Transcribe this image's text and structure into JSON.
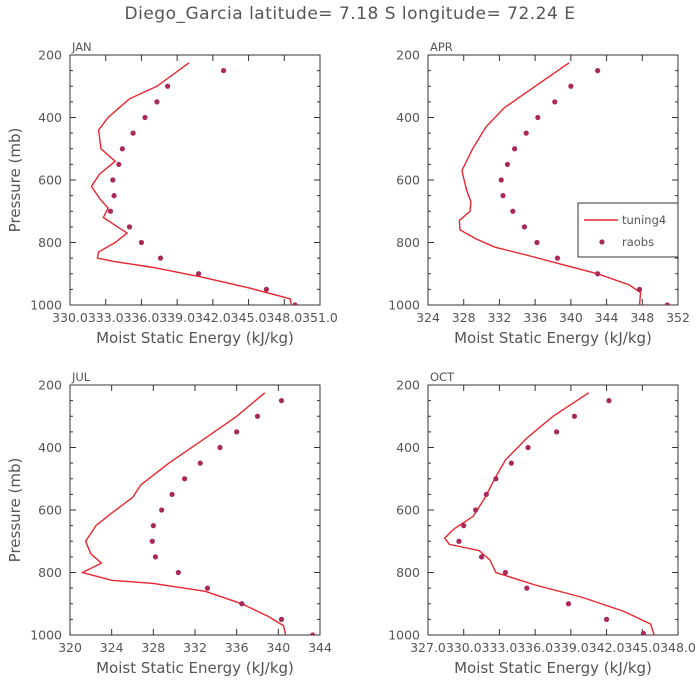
{
  "title": "Diego_Garcia  latitude= 7.18 S longitude= 72.24 E",
  "colors": {
    "model": "#e8252e",
    "obs": "#a8295a",
    "axis": "#333333",
    "text": "#555555"
  },
  "chart_data": [
    {
      "type": "line",
      "panel": "JAN",
      "xlabel": "Moist Static Energy (kJ/kg)",
      "ylabel": "Pressure (mb)",
      "xlim": [
        330.0,
        351.0
      ],
      "ylim": [
        1000,
        200
      ],
      "xticks": [
        330.0,
        333.0,
        336.0,
        339.0,
        342.0,
        345.0,
        348.0,
        351.0
      ],
      "xtick_labels": [
        "330.0",
        "333.0",
        "336.0",
        "339.0",
        "342.0",
        "345.0",
        "348.0",
        "351.0"
      ],
      "yticks": [
        200,
        400,
        600,
        800,
        1000
      ],
      "ytick_labels": [
        "200",
        "400",
        "600",
        "800",
        "1000"
      ],
      "show_legend": false,
      "series": [
        {
          "name": "tuning4",
          "kind": "line",
          "points": [
            [
              340.0,
              225
            ],
            [
              337.3,
              300
            ],
            [
              335.0,
              340
            ],
            [
              333.2,
              400
            ],
            [
              332.4,
              440
            ],
            [
              332.6,
              500
            ],
            [
              333.8,
              540
            ],
            [
              332.5,
              580
            ],
            [
              331.8,
              620
            ],
            [
              332.5,
              660
            ],
            [
              333.2,
              690
            ],
            [
              332.8,
              720
            ],
            [
              334.0,
              750
            ],
            [
              334.8,
              770
            ],
            [
              333.8,
              800
            ],
            [
              332.4,
              830
            ],
            [
              332.3,
              850
            ],
            [
              333.6,
              860
            ],
            [
              337.0,
              880
            ],
            [
              341.0,
              910
            ],
            [
              345.0,
              945
            ],
            [
              348.5,
              980
            ],
            [
              348.6,
              1000
            ]
          ]
        },
        {
          "name": "raobs",
          "kind": "scatter",
          "points": [
            [
              342.9,
              250
            ],
            [
              338.2,
              300
            ],
            [
              337.3,
              350
            ],
            [
              336.3,
              400
            ],
            [
              335.3,
              450
            ],
            [
              334.4,
              500
            ],
            [
              334.1,
              550
            ],
            [
              333.6,
              600
            ],
            [
              333.7,
              650
            ],
            [
              333.4,
              700
            ],
            [
              335.0,
              750
            ],
            [
              336.0,
              800
            ],
            [
              337.6,
              850
            ],
            [
              340.8,
              900
            ],
            [
              346.5,
              950
            ],
            [
              348.9,
              1000
            ]
          ]
        }
      ]
    },
    {
      "type": "line",
      "panel": "APR",
      "xlabel": "Moist Static Energy (kJ/kg)",
      "ylabel": "",
      "xlim": [
        324,
        352
      ],
      "ylim": [
        1000,
        200
      ],
      "xticks": [
        324,
        328,
        332,
        336,
        340,
        344,
        348,
        352
      ],
      "xtick_labels": [
        "324",
        "328",
        "332",
        "336",
        "340",
        "344",
        "348",
        "352"
      ],
      "yticks": [
        200,
        400,
        600,
        800,
        1000
      ],
      "ytick_labels": [
        "200",
        "400",
        "600",
        "800",
        "1000"
      ],
      "show_legend": true,
      "legend": {
        "position": "right",
        "labels": [
          "tuning4",
          "raobs"
        ]
      },
      "series": [
        {
          "name": "tuning4",
          "kind": "line",
          "points": [
            [
              339.8,
              225
            ],
            [
              336.0,
              300
            ],
            [
              332.5,
              370
            ],
            [
              330.5,
              430
            ],
            [
              329.0,
              500
            ],
            [
              327.8,
              570
            ],
            [
              328.3,
              630
            ],
            [
              328.8,
              670
            ],
            [
              328.7,
              700
            ],
            [
              327.5,
              730
            ],
            [
              327.6,
              760
            ],
            [
              329.5,
              790
            ],
            [
              331.5,
              815
            ],
            [
              335.0,
              840
            ],
            [
              339.0,
              870
            ],
            [
              343.0,
              900
            ],
            [
              346.5,
              935
            ],
            [
              347.8,
              960
            ],
            [
              347.7,
              1000
            ]
          ]
        },
        {
          "name": "raobs",
          "kind": "scatter",
          "points": [
            [
              343.0,
              250
            ],
            [
              340.0,
              300
            ],
            [
              338.2,
              350
            ],
            [
              336.3,
              400
            ],
            [
              335.0,
              450
            ],
            [
              333.7,
              500
            ],
            [
              332.9,
              550
            ],
            [
              332.2,
              600
            ],
            [
              332.4,
              650
            ],
            [
              333.5,
              700
            ],
            [
              334.8,
              750
            ],
            [
              336.2,
              800
            ],
            [
              338.5,
              850
            ],
            [
              343.0,
              900
            ],
            [
              347.7,
              950
            ],
            [
              350.8,
              1000
            ]
          ]
        }
      ]
    },
    {
      "type": "line",
      "panel": "JUL",
      "xlabel": "Moist Static Energy (kJ/kg)",
      "ylabel": "Pressure (mb)",
      "xlim": [
        320,
        344
      ],
      "ylim": [
        1000,
        200
      ],
      "xticks": [
        320,
        324,
        328,
        332,
        336,
        340,
        344
      ],
      "xtick_labels": [
        "320",
        "324",
        "328",
        "332",
        "336",
        "340",
        "344"
      ],
      "yticks": [
        200,
        400,
        600,
        800,
        1000
      ],
      "ytick_labels": [
        "200",
        "400",
        "600",
        "800",
        "1000"
      ],
      "show_legend": false,
      "series": [
        {
          "name": "tuning4",
          "kind": "line",
          "points": [
            [
              338.7,
              225
            ],
            [
              336.0,
              300
            ],
            [
              333.0,
              370
            ],
            [
              329.5,
              450
            ],
            [
              326.8,
              520
            ],
            [
              326.0,
              560
            ],
            [
              324.0,
              610
            ],
            [
              322.5,
              650
            ],
            [
              321.5,
              700
            ],
            [
              322.0,
              740
            ],
            [
              323.0,
              770
            ],
            [
              321.2,
              800
            ],
            [
              324.0,
              825
            ],
            [
              328.0,
              835
            ],
            [
              333.0,
              860
            ],
            [
              336.5,
              900
            ],
            [
              339.0,
              940
            ],
            [
              340.5,
              970
            ],
            [
              340.7,
              1000
            ]
          ]
        },
        {
          "name": "raobs",
          "kind": "scatter",
          "points": [
            [
              340.3,
              250
            ],
            [
              338.0,
              300
            ],
            [
              336.0,
              350
            ],
            [
              334.4,
              400
            ],
            [
              332.5,
              450
            ],
            [
              331.0,
              500
            ],
            [
              329.8,
              550
            ],
            [
              328.8,
              600
            ],
            [
              328.0,
              650
            ],
            [
              327.9,
              700
            ],
            [
              328.2,
              750
            ],
            [
              330.4,
              800
            ],
            [
              333.2,
              850
            ],
            [
              336.5,
              900
            ],
            [
              340.3,
              950
            ],
            [
              343.3,
              1000
            ]
          ]
        }
      ]
    },
    {
      "type": "line",
      "panel": "OCT",
      "xlabel": "Moist Static Energy (kJ/kg)",
      "ylabel": "",
      "xlim": [
        327.0,
        348.0
      ],
      "ylim": [
        1000,
        200
      ],
      "xticks": [
        327.0,
        330.0,
        333.0,
        336.0,
        339.0,
        342.0,
        345.0,
        348.0
      ],
      "xtick_labels": [
        "327.0",
        "330.0",
        "333.0",
        "336.0",
        "339.0",
        "342.0",
        "345.0",
        "348.0"
      ],
      "yticks": [
        200,
        400,
        600,
        800,
        1000
      ],
      "ytick_labels": [
        "200",
        "400",
        "600",
        "800",
        "1000"
      ],
      "show_legend": false,
      "series": [
        {
          "name": "tuning4",
          "kind": "line",
          "points": [
            [
              340.5,
              225
            ],
            [
              337.5,
              300
            ],
            [
              335.3,
              370
            ],
            [
              333.5,
              440
            ],
            [
              332.6,
              500
            ],
            [
              331.8,
              560
            ],
            [
              330.8,
              620
            ],
            [
              329.2,
              660
            ],
            [
              328.4,
              690
            ],
            [
              328.8,
              710
            ],
            [
              331.3,
              730
            ],
            [
              332.2,
              760
            ],
            [
              332.7,
              800
            ],
            [
              336.0,
              840
            ],
            [
              340.0,
              880
            ],
            [
              343.5,
              925
            ],
            [
              345.7,
              965
            ],
            [
              346.0,
              1000
            ]
          ]
        },
        {
          "name": "raobs",
          "kind": "scatter",
          "points": [
            [
              342.2,
              250
            ],
            [
              339.3,
              300
            ],
            [
              337.8,
              350
            ],
            [
              335.4,
              400
            ],
            [
              334.0,
              450
            ],
            [
              332.7,
              500
            ],
            [
              331.9,
              550
            ],
            [
              331.0,
              600
            ],
            [
              330.0,
              650
            ],
            [
              329.6,
              700
            ],
            [
              331.5,
              750
            ],
            [
              333.5,
              800
            ],
            [
              335.3,
              850
            ],
            [
              338.8,
              900
            ],
            [
              342.0,
              950
            ],
            [
              345.1,
              995
            ]
          ]
        }
      ]
    }
  ]
}
